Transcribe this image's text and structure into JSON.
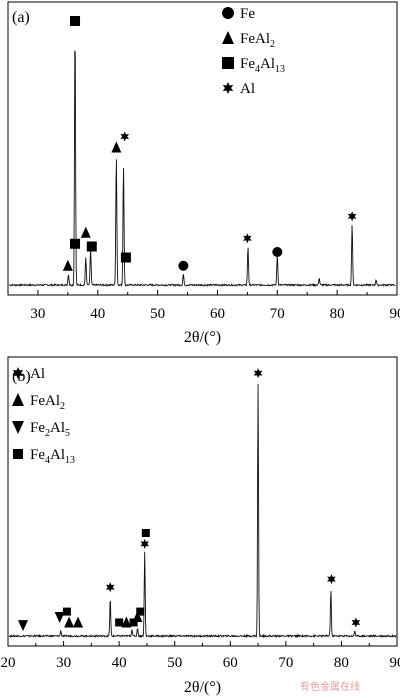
{
  "chart_data": [
    {
      "type": "line",
      "panel_label": "(a)",
      "xlabel": "2θ/(°)",
      "ylabel": "",
      "xlim": [
        25,
        90
      ],
      "x_ticks": [
        30,
        40,
        50,
        60,
        70,
        80,
        90
      ],
      "legend": [
        {
          "symbol": "circle",
          "base": "Fe",
          "sub": ""
        },
        {
          "symbol": "triangle-up",
          "base": "FeAl",
          "sub": "2"
        },
        {
          "symbol": "square",
          "base": "Fe",
          "sub": "4",
          "base2": "Al",
          "sub2": "13"
        },
        {
          "symbol": "star",
          "base": "Al",
          "sub": ""
        }
      ],
      "peaks": [
        {
          "x": 35.1,
          "h": 0.04
        },
        {
          "x": 36.2,
          "h": 0.95
        },
        {
          "x": 38.0,
          "h": 0.1
        },
        {
          "x": 38.8,
          "h": 0.13
        },
        {
          "x": 43.1,
          "h": 0.47
        },
        {
          "x": 44.3,
          "h": 0.44
        },
        {
          "x": 54.3,
          "h": 0.04
        },
        {
          "x": 65.1,
          "h": 0.14
        },
        {
          "x": 70.0,
          "h": 0.11
        },
        {
          "x": 77.0,
          "h": 0.025
        },
        {
          "x": 82.5,
          "h": 0.22
        },
        {
          "x": 86.5,
          "h": 0.02
        }
      ],
      "markers": [
        {
          "symbol": "square",
          "x": 36.2,
          "y": 0.96
        },
        {
          "symbol": "triangle-up",
          "x": 35.0,
          "y": 0.07
        },
        {
          "symbol": "square",
          "x": 36.2,
          "y": 0.15
        },
        {
          "symbol": "triangle-up",
          "x": 38.0,
          "y": 0.19
        },
        {
          "symbol": "square",
          "x": 39.0,
          "y": 0.14
        },
        {
          "symbol": "triangle-up",
          "x": 43.1,
          "y": 0.5
        },
        {
          "symbol": "star",
          "x": 44.5,
          "y": 0.54
        },
        {
          "symbol": "square",
          "x": 44.7,
          "y": 0.1
        },
        {
          "symbol": "circle",
          "x": 54.3,
          "y": 0.07
        },
        {
          "symbol": "star",
          "x": 65.0,
          "y": 0.17
        },
        {
          "symbol": "circle",
          "x": 70.0,
          "y": 0.12
        },
        {
          "symbol": "star",
          "x": 82.5,
          "y": 0.25
        }
      ]
    },
    {
      "type": "line",
      "panel_label": "(b)",
      "xlabel": "2θ/(°)",
      "ylabel": "",
      "xlim": [
        20,
        90
      ],
      "x_ticks": [
        20,
        30,
        40,
        50,
        60,
        70,
        80,
        90
      ],
      "legend": [
        {
          "symbol": "star",
          "base": "Al",
          "sub": ""
        },
        {
          "symbol": "triangle-up",
          "base": "FeAl",
          "sub": "2"
        },
        {
          "symbol": "triangle-down",
          "base": "Fe",
          "sub": "2",
          "base2": "Al",
          "sub2": "5"
        },
        {
          "symbol": "square-small",
          "base": "Fe",
          "sub": "4",
          "base2": "Al",
          "sub2": "13"
        }
      ],
      "peaks": [
        {
          "x": 29.5,
          "h": 0.02
        },
        {
          "x": 38.4,
          "h": 0.14
        },
        {
          "x": 42.3,
          "h": 0.025
        },
        {
          "x": 43.3,
          "h": 0.03
        },
        {
          "x": 44.6,
          "h": 0.31
        },
        {
          "x": 65.0,
          "h": 0.93
        },
        {
          "x": 78.1,
          "h": 0.17
        },
        {
          "x": 82.4,
          "h": 0.02
        }
      ],
      "markers": [
        {
          "symbol": "triangle-down",
          "x": 22.7,
          "y": 0.04
        },
        {
          "symbol": "triangle-down",
          "x": 29.3,
          "y": 0.07
        },
        {
          "symbol": "square-small",
          "x": 30.6,
          "y": 0.09
        },
        {
          "symbol": "triangle-up",
          "x": 31.0,
          "y": 0.05
        },
        {
          "symbol": "triangle-up",
          "x": 32.6,
          "y": 0.05
        },
        {
          "symbol": "star",
          "x": 38.4,
          "y": 0.18
        },
        {
          "symbol": "square-small",
          "x": 40.0,
          "y": 0.05
        },
        {
          "symbol": "triangle-up",
          "x": 41.3,
          "y": 0.05
        },
        {
          "symbol": "square-small",
          "x": 42.6,
          "y": 0.05
        },
        {
          "symbol": "triangle-up",
          "x": 43.3,
          "y": 0.07
        },
        {
          "symbol": "square-small",
          "x": 43.8,
          "y": 0.09
        },
        {
          "symbol": "square-small",
          "x": 44.8,
          "y": 0.38
        },
        {
          "symbol": "star",
          "x": 44.6,
          "y": 0.34
        },
        {
          "symbol": "star",
          "x": 65.0,
          "y": 0.97
        },
        {
          "symbol": "star",
          "x": 78.2,
          "y": 0.21
        },
        {
          "symbol": "star",
          "x": 82.6,
          "y": 0.05
        }
      ]
    }
  ],
  "watermark": "有色金属在线"
}
